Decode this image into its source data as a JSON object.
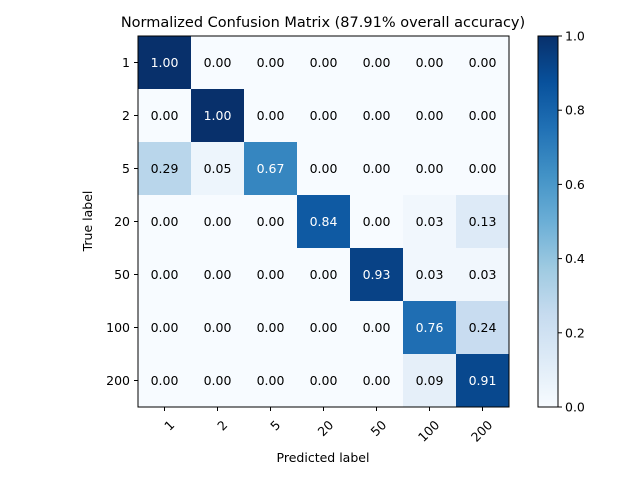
{
  "chart_data": {
    "type": "heatmap",
    "title": "Normalized Confusion Matrix (87.91% overall accuracy)",
    "xlabel": "Predicted label",
    "ylabel": "True label",
    "x_categories": [
      "1",
      "2",
      "5",
      "20",
      "50",
      "100",
      "200"
    ],
    "y_categories": [
      "1",
      "2",
      "5",
      "20",
      "50",
      "100",
      "200"
    ],
    "values": [
      [
        1.0,
        0.0,
        0.0,
        0.0,
        0.0,
        0.0,
        0.0
      ],
      [
        0.0,
        1.0,
        0.0,
        0.0,
        0.0,
        0.0,
        0.0
      ],
      [
        0.29,
        0.05,
        0.67,
        0.0,
        0.0,
        0.0,
        0.0
      ],
      [
        0.0,
        0.0,
        0.0,
        0.84,
        0.0,
        0.03,
        0.13
      ],
      [
        0.0,
        0.0,
        0.0,
        0.0,
        0.93,
        0.03,
        0.03
      ],
      [
        0.0,
        0.0,
        0.0,
        0.0,
        0.0,
        0.76,
        0.24
      ],
      [
        0.0,
        0.0,
        0.0,
        0.0,
        0.0,
        0.09,
        0.91
      ]
    ],
    "value_format_decimals": 2,
    "colorbar": {
      "min": 0.0,
      "max": 1.0,
      "ticks": [
        0.0,
        0.2,
        0.4,
        0.6,
        0.8,
        1.0
      ],
      "colormap": "Blues"
    },
    "text_colors": {
      "dark_cell": "#ffffff",
      "light_cell": "#000000"
    },
    "grid": false,
    "x_tick_rotation_deg": 45
  }
}
